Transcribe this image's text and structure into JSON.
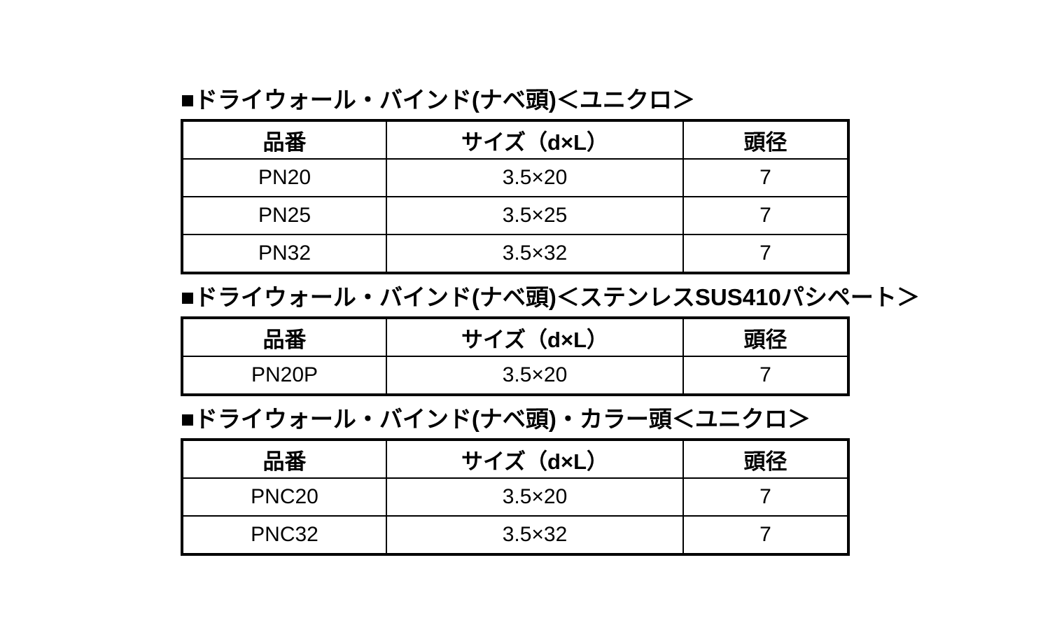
{
  "page": {
    "background_color": "#ffffff",
    "text_color": "#000000",
    "border_color": "#000000"
  },
  "sections": [
    {
      "title": "■ドライウォール・バインド(ナベ頭)＜ユニクロ＞",
      "columns": [
        "品番",
        "サイズ（d×L）",
        "頭径"
      ],
      "rows": [
        [
          "PN20",
          "3.5×20",
          "7"
        ],
        [
          "PN25",
          "3.5×25",
          "7"
        ],
        [
          "PN32",
          "3.5×32",
          "7"
        ]
      ]
    },
    {
      "title": "■ドライウォール・バインド(ナベ頭)＜ステンレスSUS410パシペート＞",
      "columns": [
        "品番",
        "サイズ（d×L）",
        "頭径"
      ],
      "rows": [
        [
          "PN20P",
          "3.5×20",
          "7"
        ]
      ]
    },
    {
      "title": "■ドライウォール・バインド(ナベ頭)・カラー頭＜ユニクロ＞",
      "columns": [
        "品番",
        "サイズ（d×L）",
        "頭径"
      ],
      "rows": [
        [
          "PNC20",
          "3.5×20",
          "7"
        ],
        [
          "PNC32",
          "3.5×32",
          "7"
        ]
      ]
    }
  ]
}
